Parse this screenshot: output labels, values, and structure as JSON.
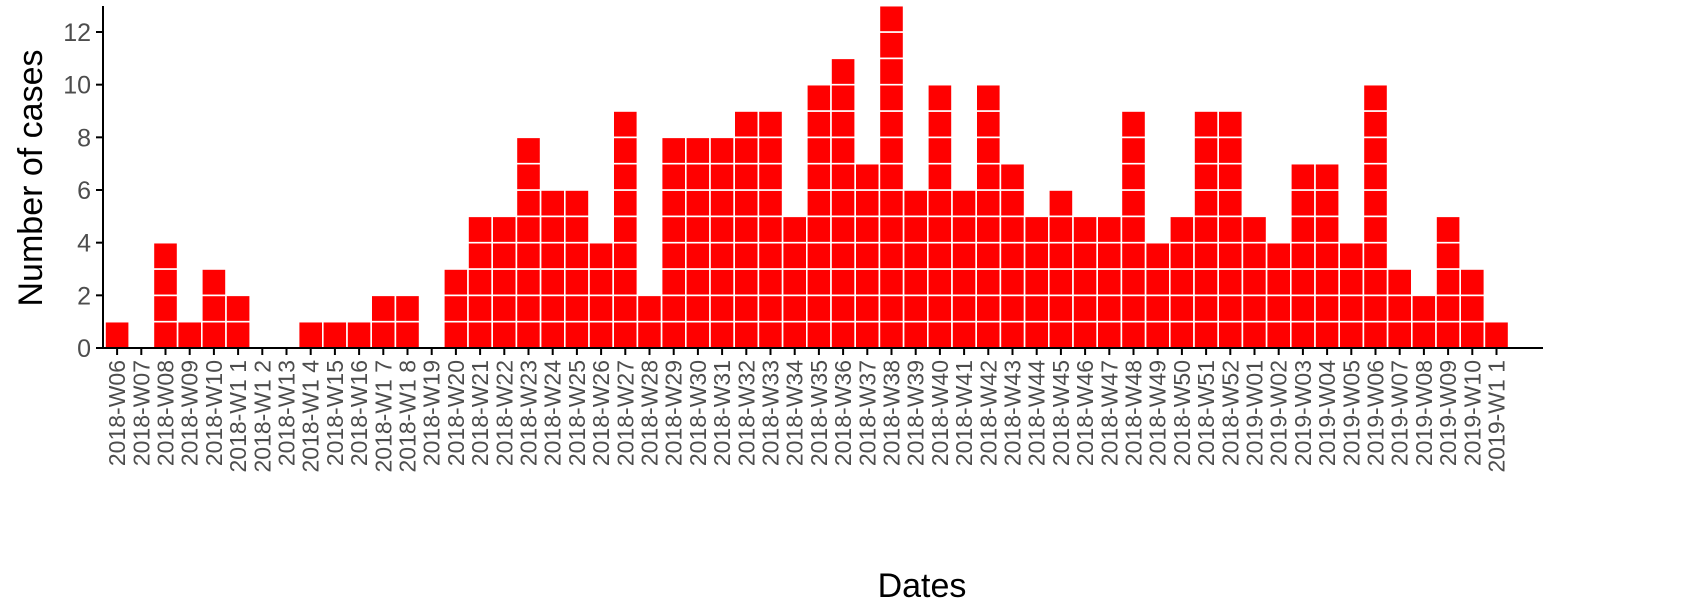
{
  "chart_data": {
    "type": "bar",
    "style": "epidemic-curve (each case drawn as a stacked square)",
    "xlabel": "Dates",
    "ylabel": "Number of cases",
    "ylim": [
      0,
      13
    ],
    "yticks": [
      0,
      2,
      4,
      6,
      8,
      10,
      12
    ],
    "bar_color": "#ff0000",
    "cell_border_color": "#ffffff",
    "grid": false,
    "legend": "none",
    "week_slots": [
      "2018-W06",
      "2018-W07",
      "2018-W08",
      "2018-W09",
      "2018-W10",
      "2018-W11",
      "2018-W12",
      "2018-W13",
      "2018-W14",
      "2018-W15",
      "2018-W16",
      "2018-W17",
      "2018-W18",
      "2018-W19",
      "2018-W20",
      "2018-W21",
      "2018-W22",
      "2018-W23",
      "2018-W24",
      "2018-W25",
      "2018-W26",
      "2018-W27",
      "2018-W28",
      "2018-W29",
      "2018-W30",
      "2018-W31",
      "2018-W32",
      "2018-W33",
      "2018-W34",
      "2018-W35",
      "2018-W36",
      "2018-W37",
      "2018-W38",
      "2018-W39",
      "2018-W40",
      "2018-W41",
      "2018-W42",
      "2018-W43",
      "2018-W44",
      "2018-W45",
      "2018-W46",
      "2018-W47",
      "2018-W48",
      "2018-W49",
      "2018-W50",
      "2018-W51",
      "2018-W52",
      "2019-W01",
      "2019-W02",
      "2019-W03",
      "2019-W04",
      "2019-W05",
      "2019-W06",
      "2019-W07",
      "2019-W08",
      "2019-W09",
      "2019-W10",
      "2019-W11"
    ],
    "values": [
      1,
      0,
      4,
      1,
      3,
      2,
      0,
      0,
      1,
      1,
      1,
      2,
      2,
      0,
      3,
      5,
      5,
      8,
      6,
      6,
      4,
      9,
      2,
      8,
      8,
      8,
      9,
      9,
      5,
      10,
      11,
      7,
      13,
      6,
      10,
      6,
      10,
      7,
      5,
      6,
      5,
      5,
      9,
      4,
      5,
      9,
      9,
      5,
      4,
      7,
      7,
      4,
      10,
      3,
      2,
      5,
      3,
      1
    ],
    "tick_labels": [
      "2018-W06",
      "2018-W07",
      "2018-W08",
      "2018-W09",
      "2018-W10",
      "2018-W1 1",
      "2018-W1 2",
      "2018-W13",
      "2018-W1 4",
      "2018-W15",
      "2018-W16",
      "2018-W1 7",
      "2018-W1 8",
      "2018-W19",
      "2018-W20",
      "2018-W21",
      "2018-W22",
      "2018-W23",
      "2018-W24",
      "2018-W25",
      "2018-W26",
      "2018-W27",
      "2018-W28",
      "2018-W29",
      "2018-W30",
      "2018-W31",
      "2018-W32",
      "2018-W33",
      "2018-W34",
      "2018-W35",
      "2018-W36",
      "2018-W37",
      "2018-W38",
      "2018-W39",
      "2018-W40",
      "2018-W41",
      "2018-W42",
      "2018-W43",
      "2018-W44",
      "2018-W45",
      "2018-W46",
      "2018-W47",
      "2018-W48",
      "2018-W49",
      "2018-W50",
      "2018-W51",
      "2018-W52",
      "2019-W01",
      "2019-W02",
      "2019-W03",
      "2019-W04",
      "2019-W05",
      "2019-W06",
      "2019-W07",
      "2019-W08",
      "2019-W09",
      "2019-W10",
      "2019-W1 1"
    ]
  }
}
